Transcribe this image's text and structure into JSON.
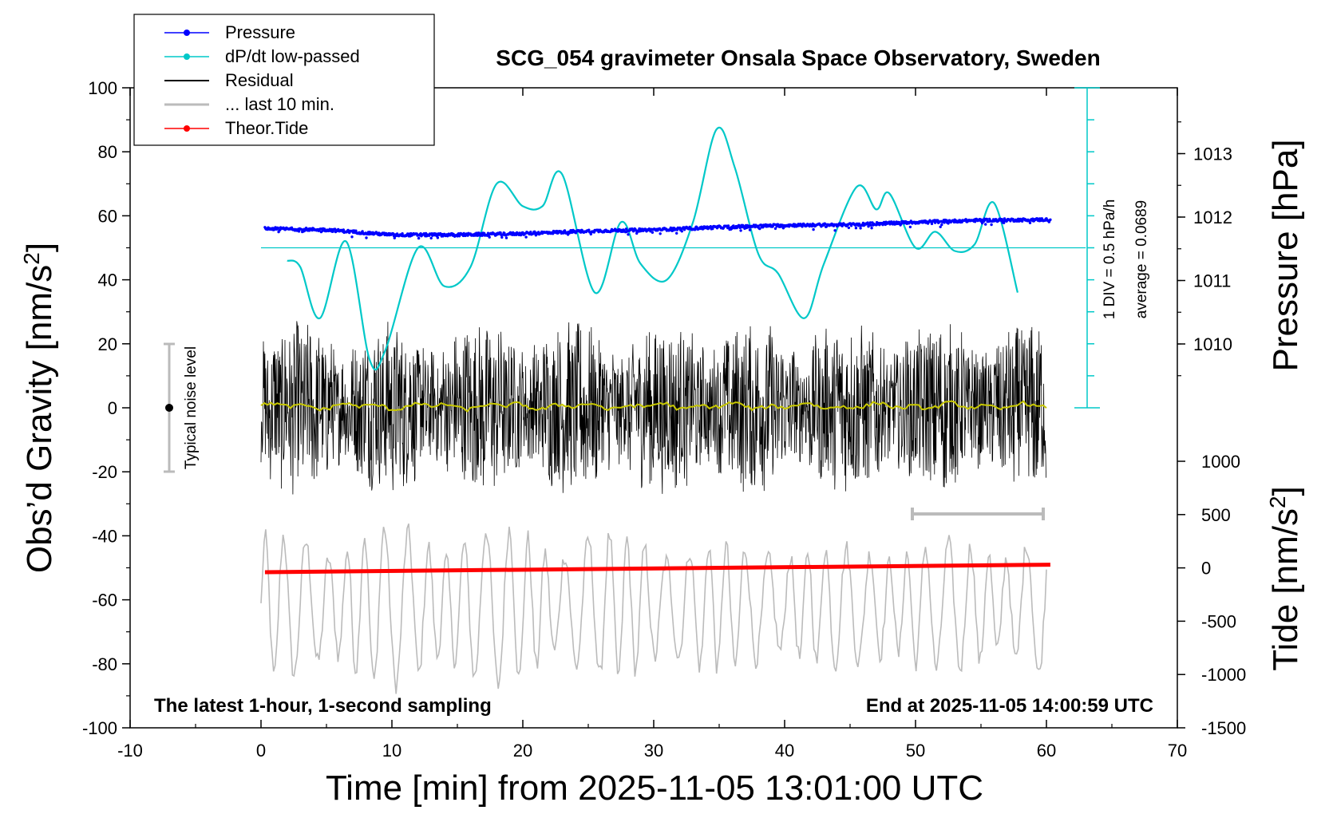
{
  "chart_data": {
    "type": "line",
    "title": "SCG_054 gravimeter Onsala Space Observatory, Sweden",
    "xlabel": "Time [min] from 2025-11-05 13:01:00 UTC",
    "ylabel_left_main": "Obs’d Gravity [nm/s",
    "ylabel_left_sup": "2",
    "ylabel_left_end": "]",
    "ylabel_right_top": "Pressure [hPa]",
    "ylabel_right_bottom_main": "Tide [nm/s",
    "ylabel_right_bottom_sup": "2",
    "ylabel_right_bottom_end": "]",
    "xlim": [
      -10,
      70
    ],
    "ylim": [
      -100,
      100
    ],
    "x_ticks": [
      "-10",
      "0",
      "10",
      "20",
      "30",
      "40",
      "50",
      "60",
      "70"
    ],
    "y_ticks": [
      "-100",
      "-80",
      "-60",
      "-40",
      "-20",
      "0",
      "20",
      "40",
      "60",
      "80",
      "100"
    ],
    "pressure_axis": {
      "ticks": [
        "1010",
        "1011",
        "1012",
        "1013"
      ],
      "range_hpa": [
        1009.0,
        1014.0
      ]
    },
    "tide_axis": {
      "ticks": [
        "1000",
        "500",
        "0",
        "-500",
        "-1000",
        "-1500"
      ],
      "range": [
        -1500,
        1000
      ]
    },
    "legend": [
      {
        "label": "Pressure",
        "color": "#0000ff",
        "marker": "dot"
      },
      {
        "label": "dP/dt low-passed",
        "color": "#00c8c8",
        "marker": "dot"
      },
      {
        "label": "Residual",
        "color": "#000000",
        "marker": "line"
      },
      {
        "label": "... last 10 min.",
        "color": "#bbbbbb",
        "marker": "line"
      },
      {
        "label": "Theor.Tide",
        "color": "#ff0000",
        "marker": "dot"
      }
    ],
    "annotations": {
      "bottom_left": "The latest 1-hour, 1-second sampling",
      "bottom_right": "End at 2025-11-05 14:00:59 UTC",
      "noise_label": "Typical noise level",
      "dpdt_scale": "1 DIV = 0.5 hPa/h",
      "dpdt_average": "average = 0.0689"
    },
    "series": [
      {
        "name": "Pressure",
        "color": "#0000ff",
        "unit": "hPa",
        "x": [
          0,
          5,
          10,
          15,
          20,
          25,
          30,
          35,
          40,
          45,
          50,
          55,
          60
        ],
        "values": [
          1011.82,
          1011.8,
          1011.72,
          1011.72,
          1011.74,
          1011.78,
          1011.8,
          1011.84,
          1011.87,
          1011.88,
          1011.92,
          1011.95,
          1011.96
        ]
      },
      {
        "name": "dP/dt low-passed",
        "color": "#00c8c8",
        "unit": "gravity-scale",
        "x": [
          2,
          3,
          4.5,
          6.5,
          8.3,
          9.5,
          12,
          14,
          16,
          18,
          20,
          21.5,
          23,
          25.5,
          27.5,
          29,
          31,
          33,
          34.8,
          36.2,
          38,
          39.5,
          41.5,
          43,
          45.5,
          47,
          48,
          50,
          51.5,
          53,
          54.5,
          56,
          57.8
        ],
        "values": [
          46,
          44,
          28,
          52,
          15,
          18,
          50,
          38,
          44,
          70,
          63,
          63,
          73,
          36,
          58,
          45,
          40,
          58,
          87,
          75,
          48,
          42,
          28,
          45,
          69,
          62,
          67,
          50,
          55,
          49,
          51,
          64,
          36
        ]
      },
      {
        "name": "Residual",
        "color": "#000000",
        "amplitude": 25,
        "x_range": [
          0,
          60
        ]
      },
      {
        "name": "Residual smoothed",
        "color": "#c8c800",
        "x": [
          0,
          10,
          20,
          30,
          40,
          50,
          60
        ],
        "values": [
          1,
          0.5,
          0.5,
          0,
          0,
          0.5,
          0
        ]
      },
      {
        "name": "... last 10 min.",
        "color": "#bbbbbb",
        "center": -62,
        "amplitude": 25,
        "x_range": [
          0,
          60
        ]
      },
      {
        "name": "Theor.Tide",
        "color": "#ff0000",
        "unit": "nm/s2",
        "x": [
          0,
          60
        ],
        "values": [
          -40,
          30
        ]
      }
    ]
  }
}
